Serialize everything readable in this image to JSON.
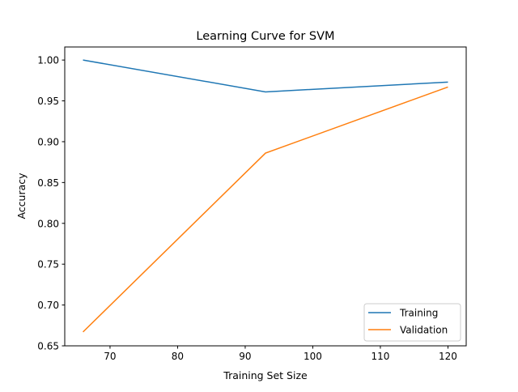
{
  "chart_data": {
    "type": "line",
    "title": "Learning Curve for SVM",
    "xlabel": "Training Set Size",
    "ylabel": "Accuracy",
    "x": [
      66,
      93,
      120
    ],
    "series": [
      {
        "name": "Training",
        "values": [
          1.0,
          0.961,
          0.973
        ],
        "color": "#1f77b4"
      },
      {
        "name": "Validation",
        "values": [
          0.667,
          0.886,
          0.967
        ],
        "color": "#ff7f0e"
      }
    ],
    "xlim": [
      63.3,
      122.7
    ],
    "ylim": [
      0.65,
      1.016
    ],
    "xticks": [
      70,
      80,
      90,
      100,
      110,
      120
    ],
    "xtick_labels": [
      "70",
      "80",
      "90",
      "100",
      "110",
      "120"
    ],
    "yticks": [
      0.65,
      0.7,
      0.75,
      0.8,
      0.85,
      0.9,
      0.95,
      1.0
    ],
    "ytick_labels": [
      "0.65",
      "0.70",
      "0.75",
      "0.80",
      "0.85",
      "0.90",
      "0.95",
      "1.00"
    ],
    "grid": false,
    "legend": "lower-right"
  }
}
